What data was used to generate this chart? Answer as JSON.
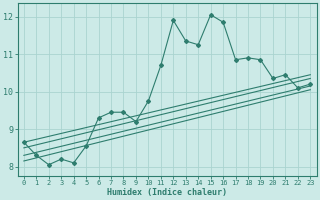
{
  "xlabel": "Humidex (Indice chaleur)",
  "bg_color": "#cceae7",
  "grid_color": "#aad4d0",
  "line_color": "#2e7d6e",
  "spine_color": "#2e7d6e",
  "xlim": [
    -0.5,
    23.5
  ],
  "ylim": [
    7.75,
    12.35
  ],
  "yticks": [
    8,
    9,
    10,
    11,
    12
  ],
  "xticks": [
    0,
    1,
    2,
    3,
    4,
    5,
    6,
    7,
    8,
    9,
    10,
    11,
    12,
    13,
    14,
    15,
    16,
    17,
    18,
    19,
    20,
    21,
    22,
    23
  ],
  "main_series": {
    "x": [
      0,
      1,
      2,
      3,
      4,
      5,
      6,
      7,
      8,
      9,
      10,
      11,
      12,
      13,
      14,
      15,
      16,
      17,
      18,
      19,
      20,
      21,
      22,
      23
    ],
    "y": [
      8.65,
      8.3,
      8.05,
      8.2,
      8.1,
      8.55,
      9.3,
      9.45,
      9.45,
      9.2,
      9.75,
      10.7,
      11.9,
      11.35,
      11.25,
      12.05,
      11.85,
      10.85,
      10.9,
      10.85,
      10.35,
      10.45,
      10.1,
      10.2
    ]
  },
  "linear_lines": [
    {
      "x0": 0,
      "y0": 8.65,
      "x1": 23,
      "y1": 10.45
    },
    {
      "x0": 0,
      "y0": 8.5,
      "x1": 23,
      "y1": 10.35
    },
    {
      "x0": 0,
      "y0": 8.3,
      "x1": 23,
      "y1": 10.15
    },
    {
      "x0": 0,
      "y0": 8.15,
      "x1": 23,
      "y1": 10.05
    }
  ]
}
